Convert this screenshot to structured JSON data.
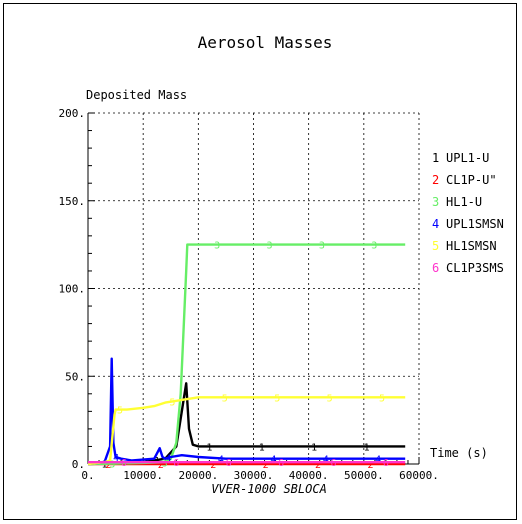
{
  "chart_data": {
    "type": "line",
    "title": "Aerosol Masses",
    "ylabel": "Deposited Mass",
    "xlabel": "Time (s)",
    "footer": "VVER-1000 SBLOCA",
    "xlim": [
      0,
      60000
    ],
    "ylim": [
      0,
      200
    ],
    "x_ticks": [
      "0.",
      "10000.",
      "20000.",
      "30000.",
      "40000.",
      "50000.",
      "60000."
    ],
    "y_ticks": [
      "0.",
      "50.",
      "100.",
      "150.",
      "200."
    ],
    "grid": true,
    "legend_position": "right",
    "series": [
      {
        "name": "UPL1-U",
        "marker": "1",
        "color": "#000000",
        "x": [
          0,
          5000,
          10000,
          14000,
          16000,
          17000,
          17800,
          18300,
          19000,
          20000,
          25000,
          30000,
          35000,
          40000,
          45000,
          50000,
          55000,
          57500
        ],
        "y": [
          0,
          0.5,
          1,
          3,
          10,
          30,
          46,
          20,
          11,
          10,
          10,
          10,
          10,
          10,
          10,
          10,
          10,
          10
        ]
      },
      {
        "name": "CL1P-U\"",
        "marker": "2",
        "color": "#ff0000",
        "x": [
          0,
          10000,
          20000,
          30000,
          40000,
          50000,
          57500
        ],
        "y": [
          0,
          0,
          0,
          0,
          0,
          0,
          0
        ]
      },
      {
        "name": "HL1-U",
        "marker": "3",
        "color": "#66ee66",
        "x": [
          0,
          5000,
          10000,
          14000,
          15000,
          16000,
          16800,
          17800,
          18000,
          20000,
          25000,
          30000,
          35000,
          40000,
          45000,
          50000,
          55000,
          57500
        ],
        "y": [
          0,
          0.3,
          0.6,
          1,
          3,
          12,
          40,
          110,
          125,
          125,
          125,
          125,
          125,
          125,
          125,
          125,
          125,
          125
        ]
      },
      {
        "name": "UPL1SMSN",
        "marker": "4",
        "color": "#0000ff",
        "x": [
          0,
          3000,
          4000,
          4300,
          4600,
          5000,
          6000,
          8000,
          10000,
          12000,
          13000,
          13500,
          14000,
          15000,
          17000,
          20000,
          25000,
          30000,
          40000,
          50000,
          57500
        ],
        "y": [
          0,
          1,
          10,
          60,
          12,
          4,
          3,
          2,
          2.5,
          3,
          9,
          4,
          3,
          4,
          5,
          4,
          3,
          3,
          3,
          3,
          3
        ]
      },
      {
        "name": "HL1SMSN",
        "marker": "5",
        "color": "#ffff33",
        "x": [
          0,
          3000,
          4000,
          4800,
          5000,
          7000,
          10000,
          12000,
          14000,
          16000,
          18000,
          20000,
          25000,
          30000,
          40000,
          50000,
          57500
        ],
        "y": [
          0,
          1,
          2,
          28,
          31,
          31,
          32,
          33,
          35,
          36,
          37,
          38,
          38,
          38,
          38,
          38,
          38
        ]
      },
      {
        "name": "CL1P3SMS",
        "marker": "6",
        "color": "#ff33cc",
        "x": [
          0,
          10000,
          20000,
          30000,
          40000,
          50000,
          57500
        ],
        "y": [
          1,
          1,
          1,
          1,
          1,
          1,
          1
        ]
      }
    ]
  }
}
